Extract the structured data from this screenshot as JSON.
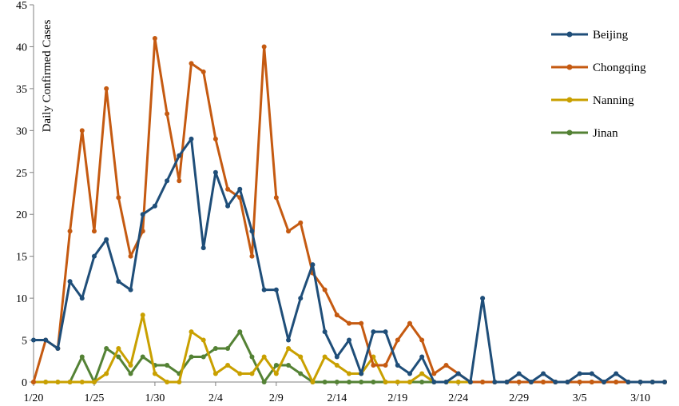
{
  "chart_data": {
    "type": "line",
    "title": "",
    "xlabel": "",
    "ylabel": "Daily Confirmed Cases",
    "ylim": [
      0,
      45
    ],
    "yticks": [
      0,
      5,
      10,
      15,
      20,
      25,
      30,
      35,
      40,
      45
    ],
    "x_tick_labels": [
      "1/20",
      "1/25",
      "1/30",
      "2/4",
      "2/9",
      "2/14",
      "2/19",
      "2/24",
      "2/29",
      "3/5",
      "3/10"
    ],
    "x_tick_every": 5,
    "grid": false,
    "legend_position": "top-right",
    "series": [
      {
        "name": "Beijing",
        "color": "#1F4E79",
        "values": [
          5,
          5,
          4,
          12,
          10,
          15,
          17,
          12,
          11,
          20,
          21,
          24,
          27,
          29,
          16,
          25,
          21,
          23,
          18,
          11,
          11,
          5,
          10,
          14,
          6,
          3,
          5,
          1,
          6,
          6,
          2,
          1,
          3,
          0,
          0,
          1,
          0,
          10,
          0,
          0,
          1,
          0,
          1,
          0,
          0,
          1,
          1,
          0,
          1,
          0,
          0,
          0,
          0
        ]
      },
      {
        "name": "Chongqing",
        "color": "#C55A11",
        "values": [
          0,
          5,
          4,
          18,
          30,
          18,
          35,
          22,
          15,
          18,
          41,
          32,
          24,
          38,
          37,
          29,
          23,
          22,
          15,
          40,
          22,
          18,
          19,
          13,
          11,
          8,
          7,
          7,
          2,
          2,
          5,
          7,
          5,
          1,
          2,
          1,
          0,
          0,
          0,
          0,
          0,
          0,
          0,
          0,
          0,
          0,
          0,
          0,
          0,
          0,
          0,
          0,
          0
        ]
      },
      {
        "name": "Nanning",
        "color": "#C9A000",
        "values": [
          0,
          0,
          0,
          0,
          0,
          0,
          1,
          4,
          2,
          8,
          1,
          0,
          0,
          6,
          5,
          1,
          2,
          1,
          1,
          3,
          1,
          4,
          3,
          0,
          3,
          2,
          1,
          1,
          3,
          0,
          0,
          0,
          1,
          0,
          0,
          0,
          0,
          0,
          0,
          0,
          0,
          0,
          0,
          0,
          0,
          0,
          0,
          0,
          0,
          0,
          0,
          0,
          0
        ]
      },
      {
        "name": "Jinan",
        "color": "#548235",
        "values": [
          0,
          0,
          0,
          0,
          3,
          0,
          4,
          3,
          1,
          3,
          2,
          2,
          1,
          3,
          3,
          4,
          4,
          6,
          3,
          0,
          2,
          2,
          1,
          0,
          0,
          0,
          0,
          0,
          0,
          0,
          0,
          0,
          0,
          0,
          0,
          0,
          0,
          0,
          0,
          0,
          0,
          0,
          0,
          0,
          0,
          0,
          0,
          0,
          0,
          0,
          0,
          0,
          0
        ]
      }
    ]
  }
}
